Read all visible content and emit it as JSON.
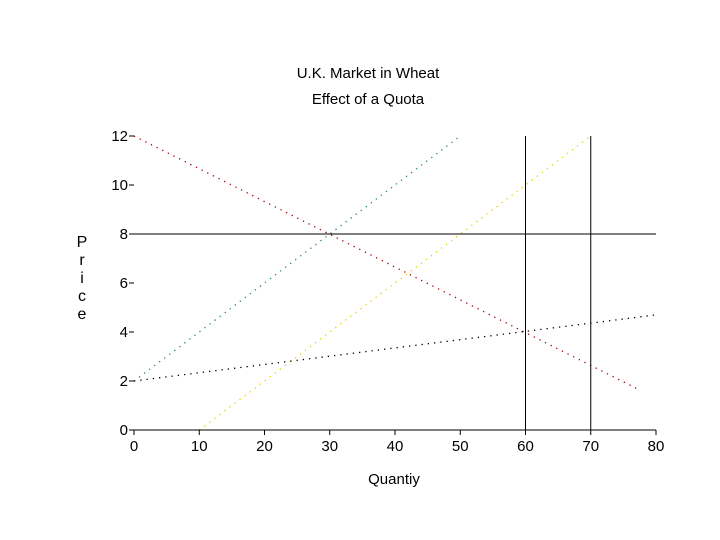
{
  "chart_data": {
    "type": "line",
    "title": "U.K. Market in Wheat",
    "subtitle": "Effect of a Quota",
    "xlabel": "Quantiy",
    "ylabel": "Price",
    "xlim": [
      0,
      80
    ],
    "ylim": [
      0,
      12
    ],
    "xticks": [
      "0",
      "10",
      "20",
      "30",
      "40",
      "50",
      "60",
      "70",
      "80"
    ],
    "yticks": [
      "0",
      "2",
      "4",
      "6",
      "8",
      "10",
      "12"
    ],
    "grid": false,
    "series": [
      {
        "color": "#b00000",
        "style": "dotted",
        "x": [
          0,
          77
        ],
        "y": [
          12,
          1.7
        ]
      },
      {
        "color": "#2e8b57",
        "style": "dotted",
        "x": [
          0,
          50
        ],
        "y": [
          2,
          12
        ]
      },
      {
        "color": "#e6d200",
        "style": "dotted",
        "x": [
          10,
          70
        ],
        "y": [
          0,
          12
        ]
      },
      {
        "color": "#e6d200",
        "style": "solid",
        "x": [
          0,
          10
        ],
        "y": [
          0,
          0
        ]
      },
      {
        "color": "#000000",
        "style": "dotted",
        "x": [
          0,
          80
        ],
        "y": [
          2,
          4.7
        ]
      },
      {
        "color": "#000000",
        "style": "solid",
        "x": [
          0,
          80
        ],
        "y": [
          8,
          8
        ]
      },
      {
        "color": "#000000",
        "style": "solid",
        "x": [
          60,
          60
        ],
        "y": [
          0,
          12
        ]
      },
      {
        "color": "#000000",
        "style": "solid",
        "x": [
          70,
          70
        ],
        "y": [
          0,
          12
        ]
      }
    ]
  }
}
